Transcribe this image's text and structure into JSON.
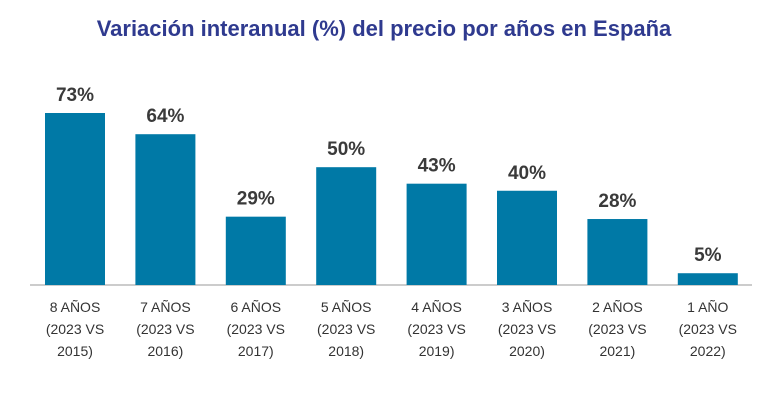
{
  "colors": {
    "bar": "#0079a6",
    "title": "#2f3a8f",
    "axis": "#9a9a9a"
  },
  "chart_data": {
    "type": "bar",
    "title": "Variación interanual (%) del precio por años en España",
    "xlabel": "",
    "ylabel": "",
    "categories": [
      [
        "8 AÑOS",
        "(2023 VS",
        "2015)"
      ],
      [
        "7 AÑOS",
        "(2023 VS",
        "2016)"
      ],
      [
        "6 AÑOS",
        "(2023 VS",
        "2017)"
      ],
      [
        "5 AÑOS",
        "(2023 VS",
        "2018)"
      ],
      [
        "4 AÑOS",
        "(2023 VS",
        "2019)"
      ],
      [
        "3 AÑOS",
        "(2023 VS",
        "2020)"
      ],
      [
        "2 AÑOS",
        "(2023 VS",
        "2021)"
      ],
      [
        "1 AÑO",
        "(2023 VS",
        "2022)"
      ]
    ],
    "values": [
      73,
      64,
      29,
      50,
      43,
      40,
      28,
      5
    ],
    "data_labels": [
      "73%",
      "64%",
      "29%",
      "50%",
      "43%",
      "40%",
      "28%",
      "5%"
    ],
    "ylim": [
      0,
      80
    ],
    "grid": false,
    "legend": "none"
  }
}
